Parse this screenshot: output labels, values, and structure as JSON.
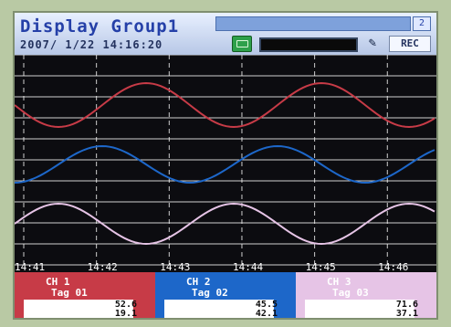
{
  "header": {
    "title": "Display Group1",
    "datetime": "2007/ 1/22 14:16:20",
    "badge": "2",
    "rec_label": "REC"
  },
  "time_ticks": [
    "14:41",
    "14:42",
    "14:43",
    "14:44",
    "14:45",
    "14:46"
  ],
  "channels": [
    {
      "label": "CH 1",
      "tag": "Tag 01",
      "v1": "52.6",
      "v2": "19.1",
      "color": "#c73b47"
    },
    {
      "label": "CH 2",
      "tag": "Tag 02",
      "v1": "45.5",
      "v2": "42.1",
      "color": "#1d67c9"
    },
    {
      "label": "CH 3",
      "tag": "Tag 03",
      "v1": "71.6",
      "v2": "37.1",
      "color": "#e6c4e6"
    }
  ],
  "chart_data": {
    "type": "line",
    "title": "",
    "xlabel": "",
    "ylabel": "",
    "x": [
      "14:41",
      "14:42",
      "14:43",
      "14:44",
      "14:45",
      "14:46"
    ],
    "series": [
      {
        "name": "CH 1",
        "values": [
          0.5,
          -0.5,
          0.5,
          -0.5,
          0.5,
          -0.5
        ],
        "color": "#c73b47"
      },
      {
        "name": "CH 2",
        "values": [
          0.0,
          0.7,
          0.0,
          -0.7,
          0.0,
          0.7
        ],
        "color": "#1d67c9"
      },
      {
        "name": "CH 3",
        "values": [
          -0.7,
          0.0,
          0.7,
          0.0,
          -0.7,
          0.0
        ],
        "color": "#e6c4e6"
      }
    ],
    "grid": true
  }
}
